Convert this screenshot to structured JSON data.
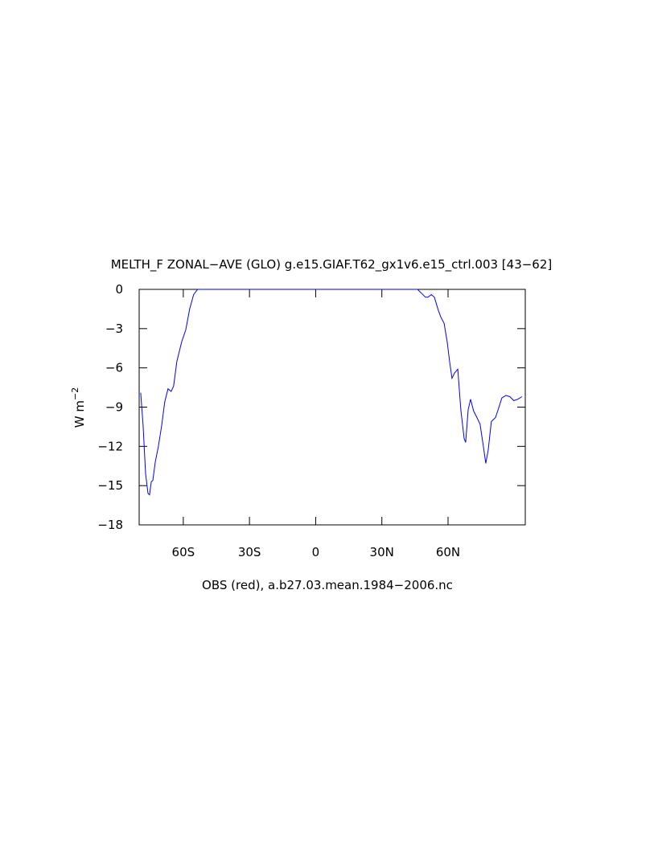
{
  "chart_data": {
    "type": "line",
    "title": "MELTH_F ZONAL−AVE (GLO) g.e15.GIAF.T62_gx1v6.e15_ctrl.003 [43−62]",
    "subtitle": "OBS (red), a.b27.03.mean.1984−2006.nc",
    "ylabel": {
      "base": "W m",
      "superscript": "−2"
    },
    "xlim": [
      -80,
      95
    ],
    "ylim": [
      -18,
      0
    ],
    "xticks": [
      {
        "value": -60,
        "label": "60S"
      },
      {
        "value": -30,
        "label": "30S"
      },
      0,
      {
        "value": 30,
        "label": "30N"
      },
      {
        "value": 60,
        "label": "60N"
      }
    ],
    "yticks": [
      0,
      {
        "value": -3,
        "label": "−3"
      },
      {
        "value": -6,
        "label": "−6"
      },
      {
        "value": -9,
        "label": "−9"
      },
      {
        "value": -12,
        "label": "−12"
      },
      {
        "value": -15,
        "label": "−15"
      },
      {
        "value": -18,
        "label": "−18"
      }
    ],
    "grid": false,
    "series": [
      {
        "color": "#0000ff",
        "x": [
          -79.3,
          -78.2,
          -77.1,
          -76,
          -75.3,
          -74.5,
          -73.8,
          -72.7,
          -71.3,
          -69.8,
          -68.4,
          -66.9,
          -65.5,
          -64.4,
          -62.9,
          -60.7,
          -58.9,
          -57.1,
          -55.3,
          -53.5,
          46.2,
          49.8,
          50.9,
          52.4,
          53.8,
          55.6,
          56.7,
          58.2,
          59.6,
          60.7,
          61.8,
          62.9,
          64.4,
          65.8,
          67.3,
          68,
          69.1,
          70.2,
          71.6,
          73.1,
          74.5,
          76,
          77.1,
          78.2,
          79.6,
          81.5,
          82.5,
          84.4,
          86.2,
          88,
          89.8,
          91.6,
          93.5
        ],
        "values": [
          -7.9,
          -10.4,
          -14.1,
          -15.6,
          -15.7,
          -14.7,
          -14.6,
          -13.2,
          -12.0,
          -10.4,
          -8.6,
          -7.6,
          -7.8,
          -7.4,
          -5.5,
          -4.0,
          -3.1,
          -1.5,
          -0.4,
          0,
          0,
          -0.6,
          -0.6,
          -0.4,
          -0.6,
          -1.6,
          -2.1,
          -2.6,
          -4.0,
          -5.5,
          -6.8,
          -6.4,
          -6.1,
          -9.2,
          -11.4,
          -11.7,
          -9.2,
          -8.4,
          -9.3,
          -9.8,
          -10.3,
          -12.0,
          -13.3,
          -12.3,
          -10.1,
          -9.8,
          -9.3,
          -8.3,
          -8.1,
          -8.2,
          -8.5,
          -8.4,
          -8.2
        ]
      }
    ]
  }
}
